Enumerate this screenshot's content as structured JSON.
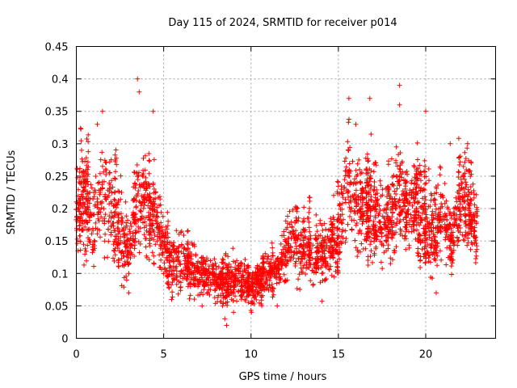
{
  "chart_data": {
    "type": "scatter",
    "title": "Day 115 of 2024, SRMTID for receiver p014",
    "xlabel": "GPS time / hours",
    "ylabel": "SRMTID / TECUs",
    "xlim": [
      0,
      24
    ],
    "ylim": [
      0,
      0.45
    ],
    "x_ticks": [
      0,
      5,
      10,
      15,
      20
    ],
    "x_tick_labels": [
      "0",
      "5",
      "10",
      "15",
      "20"
    ],
    "y_ticks": [
      0,
      0.05,
      0.1,
      0.15,
      0.2,
      0.25,
      0.3,
      0.35,
      0.4,
      0.45
    ],
    "y_tick_labels": [
      "0",
      "0.05",
      "0.1",
      "0.15",
      "0.2",
      "0.25",
      "0.3",
      "0.35",
      "0.4",
      "0.45"
    ],
    "grid": true,
    "marker": "plus",
    "color": "#ff0000",
    "trend": {
      "x": [
        0,
        0.5,
        1,
        1.5,
        2,
        2.5,
        3,
        3.5,
        4,
        4.5,
        5,
        5.5,
        6,
        6.5,
        7,
        7.5,
        8,
        8.5,
        9,
        9.5,
        10,
        10.5,
        11,
        11.5,
        12,
        12.5,
        13,
        13.5,
        14,
        14.5,
        15,
        15.5,
        16,
        16.5,
        17,
        17.5,
        18,
        18.5,
        19,
        19.5,
        20,
        20.5,
        21,
        21.5,
        22,
        22.5,
        22.9
      ],
      "y": [
        0.2,
        0.22,
        0.18,
        0.24,
        0.19,
        0.17,
        0.13,
        0.22,
        0.2,
        0.19,
        0.14,
        0.11,
        0.12,
        0.11,
        0.1,
        0.1,
        0.09,
        0.08,
        0.09,
        0.09,
        0.08,
        0.09,
        0.1,
        0.1,
        0.14,
        0.15,
        0.14,
        0.13,
        0.13,
        0.14,
        0.15,
        0.25,
        0.21,
        0.2,
        0.19,
        0.18,
        0.18,
        0.22,
        0.2,
        0.21,
        0.17,
        0.17,
        0.18,
        0.15,
        0.22,
        0.21,
        0.17
      ]
    },
    "peaks": [
      {
        "x": 0.3,
        "y": 0.29
      },
      {
        "x": 1.2,
        "y": 0.33
      },
      {
        "x": 1.5,
        "y": 0.35
      },
      {
        "x": 3.5,
        "y": 0.4
      },
      {
        "x": 3.6,
        "y": 0.38
      },
      {
        "x": 4.4,
        "y": 0.35
      },
      {
        "x": 15.6,
        "y": 0.37
      },
      {
        "x": 16.0,
        "y": 0.33
      },
      {
        "x": 16.8,
        "y": 0.37
      },
      {
        "x": 18.5,
        "y": 0.39
      },
      {
        "x": 18.5,
        "y": 0.36
      },
      {
        "x": 20.0,
        "y": 0.35
      },
      {
        "x": 22.4,
        "y": 0.3
      },
      {
        "x": 21.4,
        "y": 0.3
      }
    ],
    "lows": [
      {
        "x": 3.0,
        "y": 0.07
      },
      {
        "x": 8.6,
        "y": 0.02
      },
      {
        "x": 8.5,
        "y": 0.03
      },
      {
        "x": 9.0,
        "y": 0.04
      },
      {
        "x": 11.5,
        "y": 0.05
      },
      {
        "x": 20.6,
        "y": 0.07
      },
      {
        "x": 7.2,
        "y": 0.05
      }
    ]
  }
}
